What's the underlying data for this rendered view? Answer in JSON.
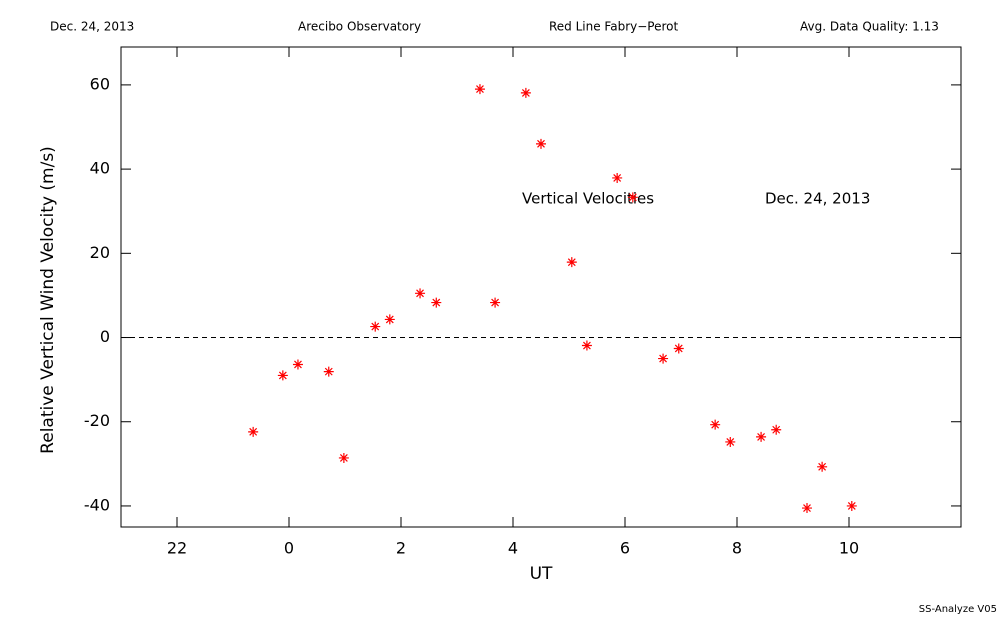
{
  "chart_data": {
    "type": "scatter",
    "header": [
      "Dec. 24, 2013",
      "Arecibo Observatory",
      "Red Line Fabry−Perot",
      "Avg. Data Quality: 1.13"
    ],
    "annotations": [
      "Vertical Velocities",
      "Dec. 24, 2013"
    ],
    "x_label": "UT",
    "y_label": "Relative Vertical Wind Velocity (m/s)",
    "footer": "SS-Analyze V05",
    "color": "#ff0000",
    "reference_line": 0,
    "xlim": [
      21,
      36
    ],
    "ylim": [
      -45,
      69
    ],
    "xticks": [
      22,
      {
        "value": 24,
        "label": "0"
      },
      {
        "value": 26,
        "label": "2"
      },
      {
        "value": 28,
        "label": "4"
      },
      {
        "value": 30,
        "label": "6"
      },
      {
        "value": 32,
        "label": "8"
      },
      {
        "value": 34,
        "label": "10"
      }
    ],
    "yticks": [
      -40,
      -20,
      0,
      20,
      40,
      60
    ],
    "x": [
      23.36,
      23.89,
      24.16,
      24.71,
      24.98,
      25.54,
      25.8,
      26.34,
      26.63,
      27.41,
      27.68,
      28.23,
      28.5,
      29.05,
      29.32,
      29.86,
      30.14,
      30.68,
      30.96,
      31.61,
      31.88,
      32.43,
      32.7,
      33.25,
      33.52,
      34.05
    ],
    "values": [
      -22.4,
      -9.0,
      -6.4,
      -8.1,
      -28.6,
      2.6,
      4.3,
      10.5,
      8.3,
      59.0,
      8.3,
      58.1,
      46.0,
      17.9,
      -1.9,
      37.9,
      33.3,
      -5.0,
      -2.6,
      -20.7,
      -24.8,
      -23.6,
      -21.9,
      -40.5,
      -30.7,
      -40.0
    ]
  }
}
